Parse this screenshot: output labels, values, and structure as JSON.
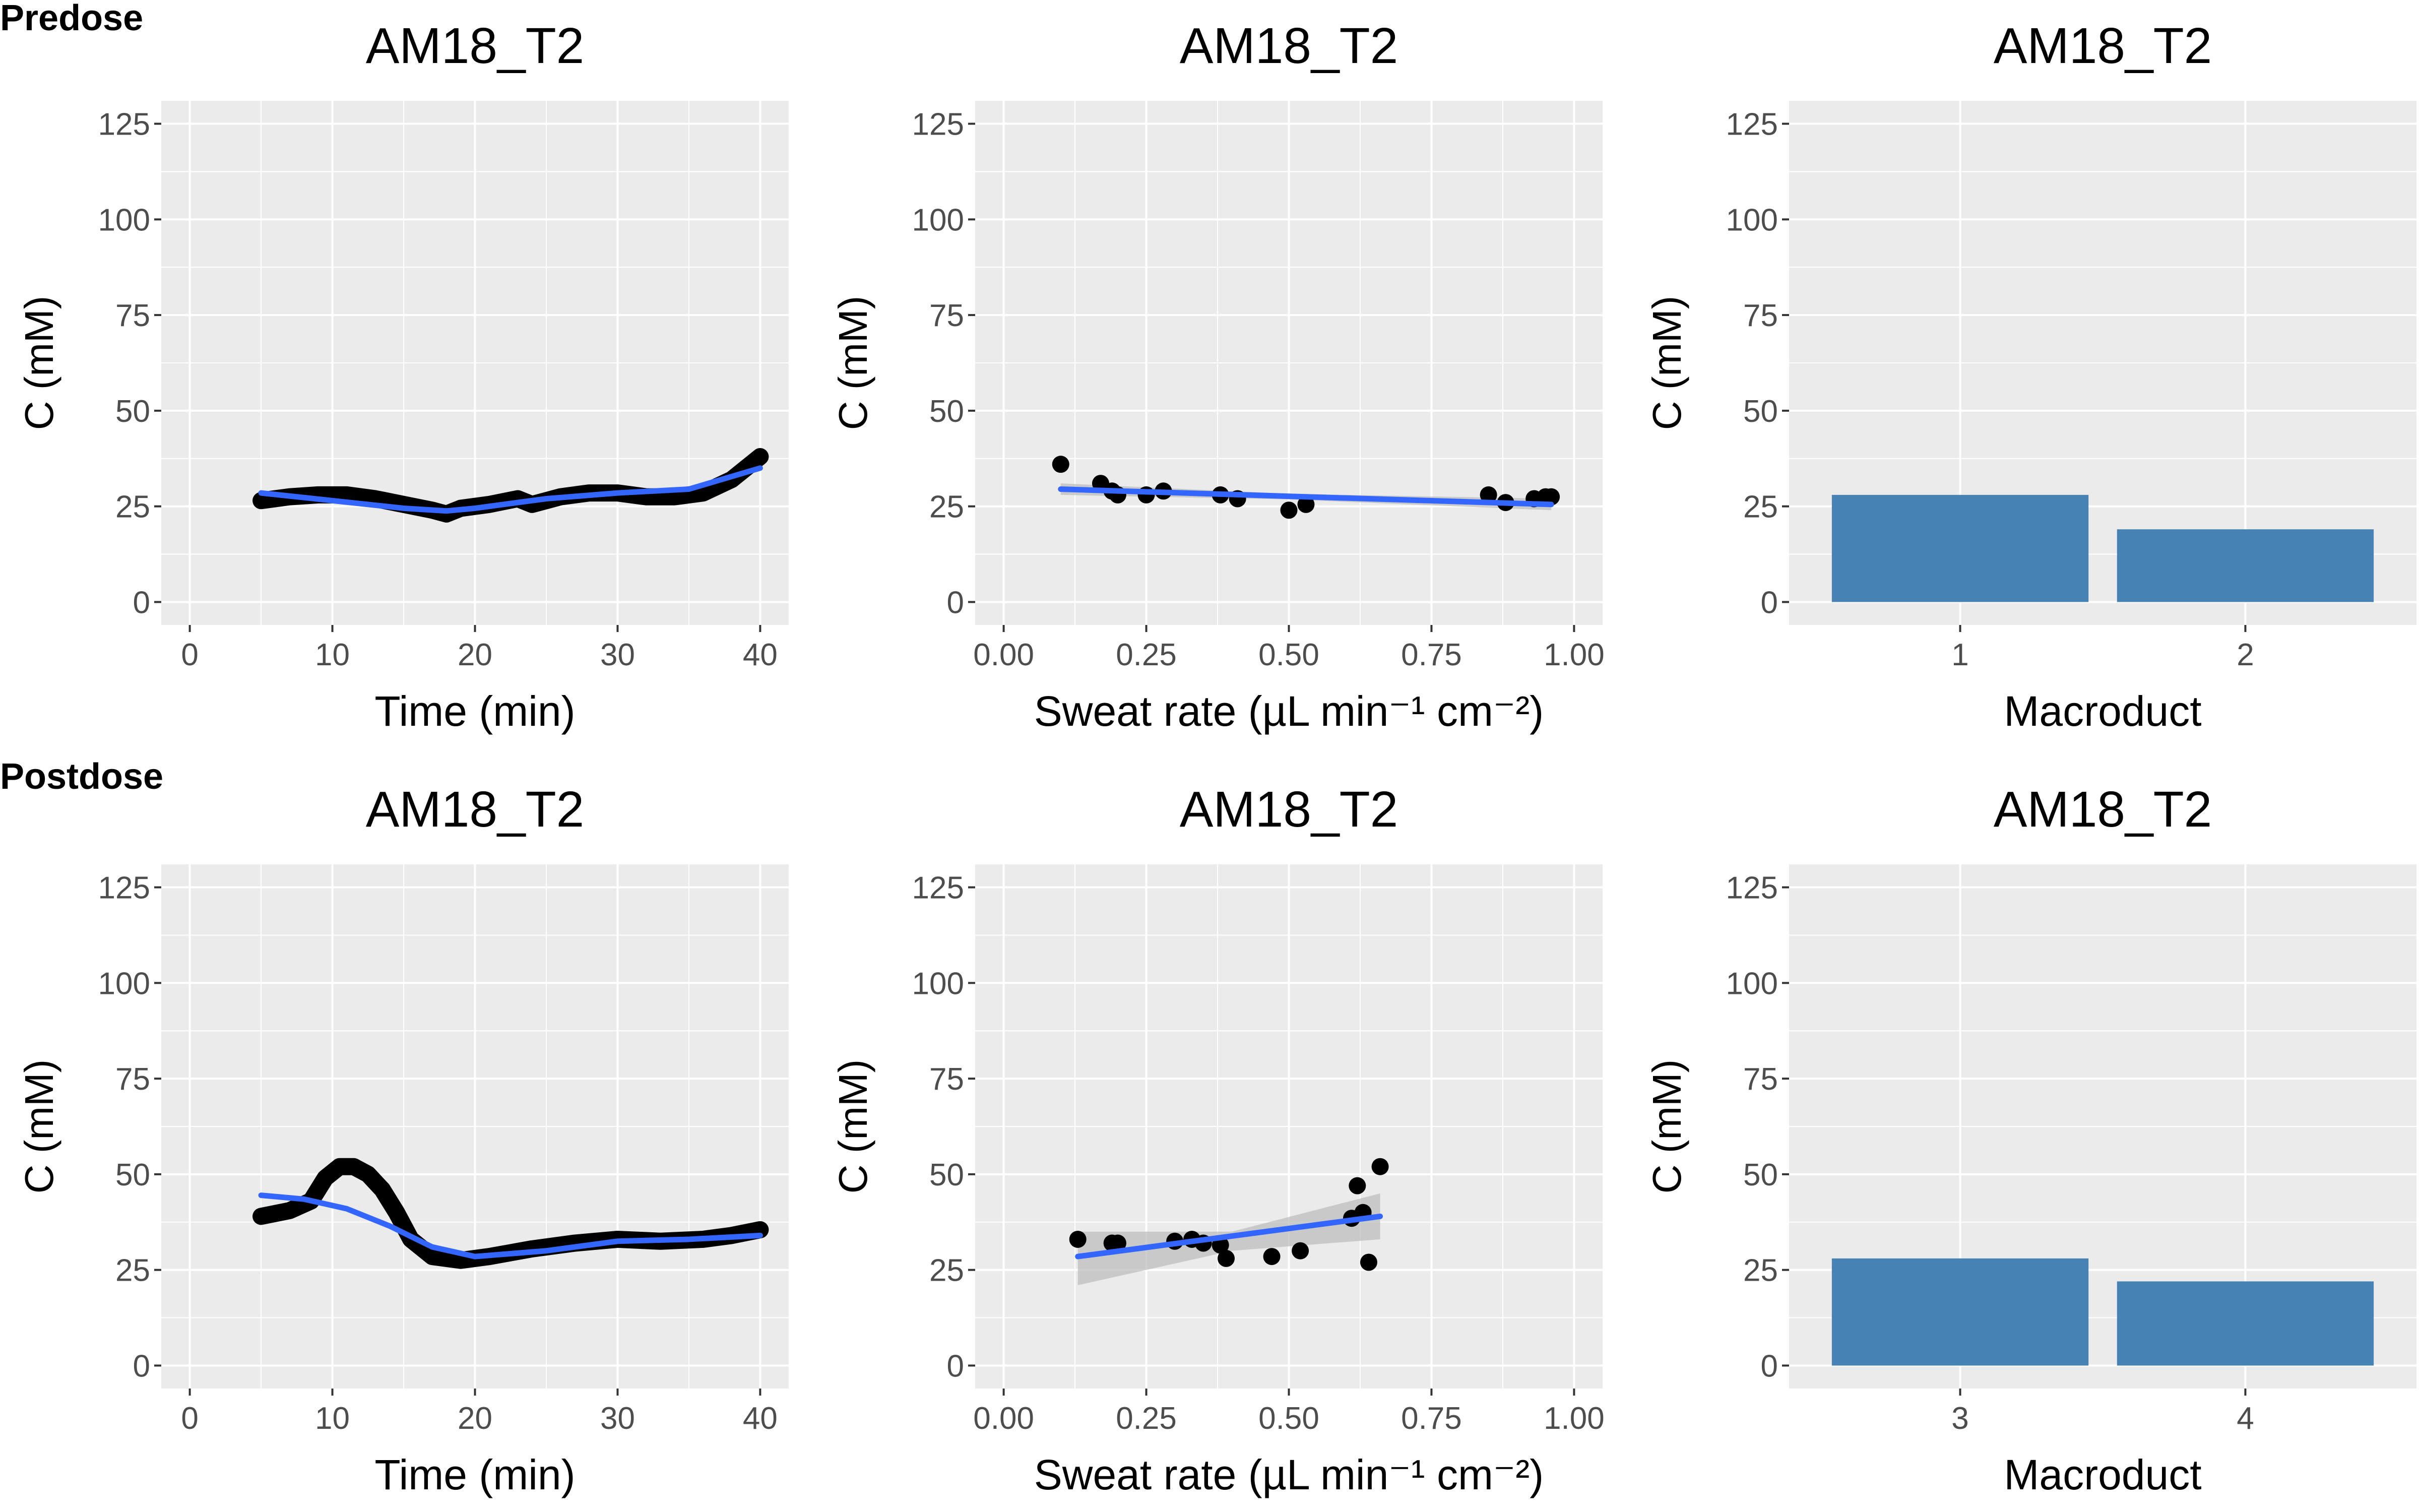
{
  "row_labels": [
    "Predose",
    "Postdose"
  ],
  "colors": {
    "panel_bg": "#EBEBEB",
    "grid": "#FFFFFF",
    "smooth": "#3366FF",
    "bar": "#4682B4",
    "points": "#000000",
    "ribbon": "#BDBDBD"
  },
  "chart_data": [
    {
      "type": "line",
      "title": "AM18_T2",
      "xlabel": "Time (min)",
      "ylabel": "C (mM)",
      "xlim": [
        -2,
        42
      ],
      "ylim": [
        -6,
        131
      ],
      "xticks": [
        "0",
        "10",
        "20",
        "30",
        "40"
      ],
      "yticks": [
        "0",
        "25",
        "50",
        "75",
        "100",
        "125"
      ],
      "series": [
        {
          "role": "data",
          "x": [
            5,
            7,
            9,
            11,
            13,
            15,
            17,
            18,
            19,
            21,
            23,
            24,
            26,
            28,
            30,
            32,
            34,
            36,
            38,
            40
          ],
          "y": [
            26.5,
            27.5,
            28,
            28,
            27,
            25.5,
            24,
            23,
            24.5,
            25.5,
            27,
            25.5,
            27.5,
            28.5,
            28.5,
            27.5,
            27.5,
            28.5,
            32,
            38
          ]
        },
        {
          "role": "smooth",
          "x": [
            5,
            10,
            15,
            18,
            20,
            25,
            30,
            35,
            40
          ],
          "y": [
            28.5,
            26.5,
            24.5,
            23.8,
            24.5,
            27,
            28.5,
            29.5,
            35
          ]
        }
      ]
    },
    {
      "type": "scatter",
      "title": "AM18_T2",
      "xlabel": "Sweat rate (µL min⁻¹ cm⁻²)",
      "ylabel": "C (mM)",
      "xlim": [
        -0.05,
        1.05
      ],
      "ylim": [
        -6,
        131
      ],
      "xticks": [
        "0.00",
        "0.25",
        "0.50",
        "0.75",
        "1.00"
      ],
      "yticks": [
        "0",
        "25",
        "50",
        "75",
        "100",
        "125"
      ],
      "points": {
        "x": [
          0.1,
          0.17,
          0.19,
          0.2,
          0.25,
          0.28,
          0.38,
          0.41,
          0.5,
          0.53,
          0.85,
          0.88,
          0.93,
          0.95,
          0.96
        ],
        "y": [
          36,
          31,
          29,
          28,
          28,
          29,
          28,
          27,
          24,
          25.5,
          28,
          26,
          27,
          27.5,
          27.5
        ]
      },
      "fit": {
        "x": [
          0.1,
          0.96
        ],
        "y": [
          29.5,
          25.5
        ]
      },
      "ribbon": {
        "x": [
          0.1,
          0.5,
          0.96
        ],
        "lower": [
          28,
          26.8,
          24
        ],
        "upper": [
          31,
          28.3,
          27
        ]
      }
    },
    {
      "type": "bar",
      "title": "AM18_T2",
      "xlabel": "Macroduct",
      "ylabel": "C (mM)",
      "ylim": [
        -6,
        131
      ],
      "yticks": [
        "0",
        "25",
        "50",
        "75",
        "100",
        "125"
      ],
      "categories": [
        "1",
        "2"
      ],
      "values": [
        28,
        19
      ]
    },
    {
      "type": "line",
      "title": "AM18_T2",
      "xlabel": "Time (min)",
      "ylabel": "C (mM)",
      "xlim": [
        -2,
        42
      ],
      "ylim": [
        -6,
        131
      ],
      "xticks": [
        "0",
        "10",
        "20",
        "30",
        "40"
      ],
      "yticks": [
        "0",
        "25",
        "50",
        "75",
        "100",
        "125"
      ],
      "series": [
        {
          "role": "data",
          "x": [
            5,
            7,
            8.5,
            9.5,
            10.5,
            11.5,
            12.5,
            13.5,
            14.5,
            15.5,
            17,
            19,
            21,
            24,
            27,
            30,
            33,
            36,
            38,
            40
          ],
          "y": [
            39,
            40.5,
            43,
            49,
            52,
            52,
            50,
            46,
            40,
            33,
            28.5,
            27.5,
            28.5,
            30.5,
            32,
            33,
            32.5,
            33,
            34,
            35.5
          ]
        },
        {
          "role": "smooth",
          "x": [
            5,
            8,
            11,
            14,
            17,
            20,
            25,
            30,
            35,
            40
          ],
          "y": [
            44.5,
            43.5,
            41,
            36.5,
            31,
            28.5,
            30,
            32.5,
            33,
            34
          ]
        }
      ]
    },
    {
      "type": "scatter",
      "title": "AM18_T2",
      "xlabel": "Sweat rate (µL min⁻¹ cm⁻²)",
      "ylabel": "C (mM)",
      "xlim": [
        -0.05,
        1.05
      ],
      "ylim": [
        -6,
        131
      ],
      "xticks": [
        "0.00",
        "0.25",
        "0.50",
        "0.75",
        "1.00"
      ],
      "yticks": [
        "0",
        "25",
        "50",
        "75",
        "100",
        "125"
      ],
      "points": {
        "x": [
          0.13,
          0.19,
          0.2,
          0.3,
          0.33,
          0.35,
          0.38,
          0.39,
          0.47,
          0.52,
          0.61,
          0.62,
          0.63,
          0.64,
          0.66
        ],
        "y": [
          33,
          32,
          32,
          32.5,
          33,
          32,
          31.5,
          28,
          28.5,
          30,
          38.5,
          47,
          40,
          27,
          52
        ]
      },
      "fit": {
        "x": [
          0.13,
          0.66
        ],
        "y": [
          28.5,
          39
        ]
      },
      "ribbon": {
        "x": [
          0.13,
          0.4,
          0.66
        ],
        "lower": [
          21,
          30,
          33
        ],
        "upper": [
          35,
          35,
          45
        ]
      }
    },
    {
      "type": "bar",
      "title": "AM18_T2",
      "xlabel": "Macroduct",
      "ylabel": "C (mM)",
      "ylim": [
        -6,
        131
      ],
      "yticks": [
        "0",
        "25",
        "50",
        "75",
        "100",
        "125"
      ],
      "categories": [
        "3",
        "4"
      ],
      "values": [
        28,
        22
      ]
    }
  ]
}
